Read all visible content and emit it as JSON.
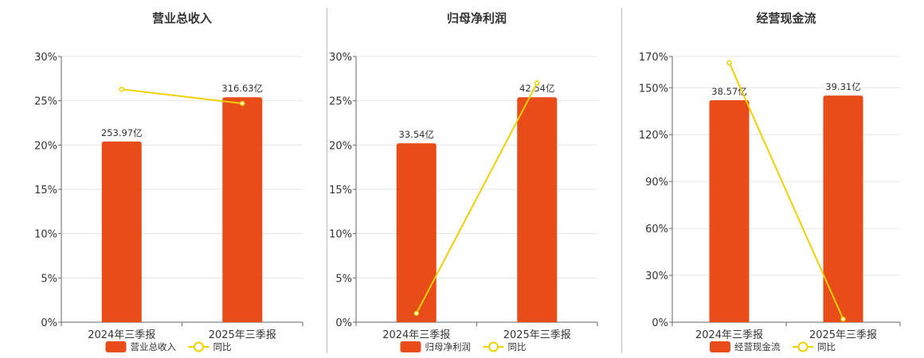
{
  "chart_data": [
    {
      "type": "bar",
      "title": "营业总收入",
      "categories": [
        "2024年三季报",
        "2025年三季报"
      ],
      "bar_series": {
        "name": "营业总收入",
        "values": [
          20.4,
          25.4
        ],
        "labels": [
          "253.97亿",
          "316.63亿"
        ],
        "color": "#e84c19"
      },
      "line_series": {
        "name": "同比",
        "values": [
          26.3,
          24.7
        ],
        "color": "#f0d000"
      },
      "ylim": [
        0,
        30
      ],
      "yticks": [
        "0%",
        "5%",
        "10%",
        "15%",
        "20%",
        "25%",
        "30%"
      ],
      "ytick_values": [
        0,
        5,
        10,
        15,
        20,
        25,
        30
      ],
      "grid": true,
      "legend": "bottom"
    },
    {
      "type": "bar",
      "title": "归母净利润",
      "categories": [
        "2024年三季报",
        "2025年三季报"
      ],
      "bar_series": {
        "name": "归母净利润",
        "values": [
          20.2,
          25.4
        ],
        "labels": [
          "33.54亿",
          "42.54亿"
        ],
        "color": "#e84c19"
      },
      "line_series": {
        "name": "同比",
        "values": [
          1.0,
          27.0
        ],
        "color": "#f0d000"
      },
      "ylim": [
        0,
        30
      ],
      "yticks": [
        "0%",
        "5%",
        "10%",
        "15%",
        "20%",
        "25%",
        "30%"
      ],
      "ytick_values": [
        0,
        5,
        10,
        15,
        20,
        25,
        30
      ],
      "grid": true,
      "legend": "bottom"
    },
    {
      "type": "bar",
      "title": "经营现金流",
      "categories": [
        "2024年三季报",
        "2025年三季报"
      ],
      "bar_series": {
        "name": "经营现金流",
        "values": [
          142,
          145
        ],
        "labels": [
          "38.57亿",
          "39.31亿"
        ],
        "color": "#e84c19"
      },
      "line_series": {
        "name": "同比",
        "values": [
          166,
          2
        ],
        "color": "#f0d000"
      },
      "ylim": [
        0,
        170
      ],
      "yticks": [
        "0%",
        "30%",
        "60%",
        "90%",
        "120%",
        "150%",
        "170%"
      ],
      "ytick_values": [
        0,
        30,
        60,
        90,
        120,
        150,
        170
      ],
      "grid": true,
      "legend": "bottom"
    }
  ]
}
